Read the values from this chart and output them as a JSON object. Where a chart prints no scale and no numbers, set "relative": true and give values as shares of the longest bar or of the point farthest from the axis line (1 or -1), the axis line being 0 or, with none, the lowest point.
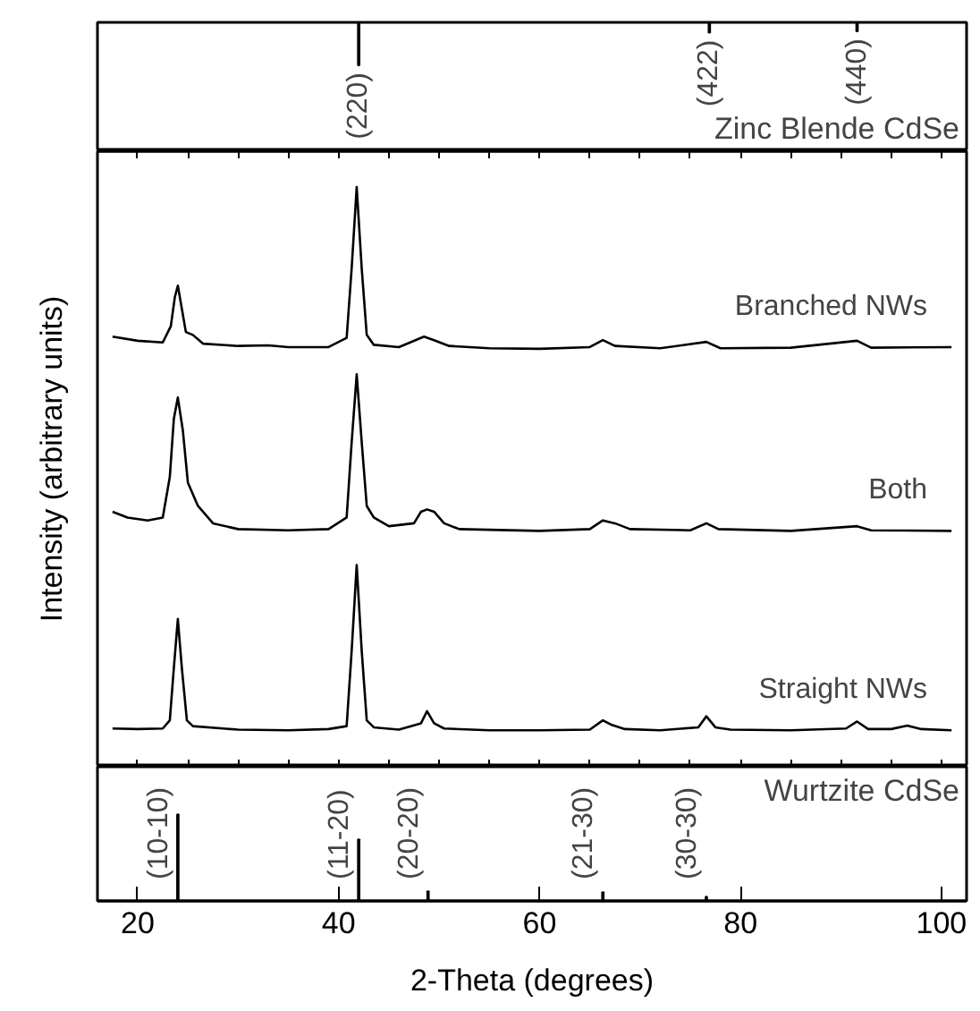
{
  "chart_data": [
    {
      "type": "bar",
      "title": "Zinc Blende CdSe",
      "relative": true,
      "xlim": [
        16,
        102.5
      ],
      "tick_labels": false,
      "x": [
        42.0,
        76.9,
        91.6
      ],
      "values": [
        -1,
        -0.24,
        -0.21
      ],
      "color": "#000000",
      "annotations": [
        {
          "text": "(220)",
          "x": 42.0,
          "y": -1
        },
        {
          "text": "(422)",
          "x": 76.9,
          "y": -0.24
        },
        {
          "text": "(440)",
          "x": 91.6,
          "y": -0.21
        }
      ]
    },
    {
      "type": "line",
      "relative": true,
      "ylabel": "Intensity (arbitrary units)",
      "xlim": [
        16,
        102.5
      ],
      "tick_labels": false,
      "xticks": [
        {
          "value": 20,
          "label": null
        },
        {
          "value": 25,
          "label": null
        },
        {
          "value": 30,
          "label": null
        },
        {
          "value": 35,
          "label": null
        },
        {
          "value": 40,
          "label": null
        },
        {
          "value": 45,
          "label": null
        },
        {
          "value": 50,
          "label": null
        },
        {
          "value": 55,
          "label": null
        },
        {
          "value": 60,
          "label": null
        },
        {
          "value": 65,
          "label": null
        },
        {
          "value": 70,
          "label": null
        },
        {
          "value": 75,
          "label": null
        },
        {
          "value": 80,
          "label": null
        },
        {
          "value": 85,
          "label": null
        },
        {
          "value": 90,
          "label": null
        },
        {
          "value": 95,
          "label": null
        },
        {
          "value": 100,
          "label": null
        }
      ],
      "series": [
        {
          "name": "Branched NWs",
          "color": "#000000",
          "x": [
            17.5,
            20,
            22.5,
            23.3,
            23.7,
            24.0,
            24.4,
            24.8,
            25.5,
            26.5,
            30,
            33,
            35,
            39,
            40.8,
            41.3,
            41.8,
            42.3,
            42.8,
            43.5,
            46,
            48.5,
            49.5,
            51,
            55,
            60,
            65,
            66.3,
            67.5,
            72,
            76.6,
            78,
            85,
            91.6,
            93,
            101
          ],
          "values": [
            0.742,
            0.735,
            0.732,
            0.76,
            0.81,
            0.83,
            0.79,
            0.75,
            0.745,
            0.73,
            0.726,
            0.727,
            0.724,
            0.724,
            0.74,
            0.86,
            1.0,
            0.86,
            0.745,
            0.728,
            0.724,
            0.742,
            0.736,
            0.726,
            0.722,
            0.721,
            0.724,
            0.736,
            0.726,
            0.722,
            0.733,
            0.722,
            0.723,
            0.735,
            0.723,
            0.724
          ]
        },
        {
          "name": "Both",
          "color": "#000000",
          "x": [
            17.5,
            19,
            21,
            22.5,
            23.2,
            23.6,
            24.0,
            24.5,
            25,
            26,
            27.5,
            30,
            35,
            39,
            40.8,
            41.3,
            41.8,
            42.3,
            42.8,
            43.5,
            45,
            47.5,
            48.2,
            48.8,
            49.5,
            50.5,
            52,
            60,
            65,
            66.3,
            67.5,
            69,
            75,
            76.6,
            77.8,
            85,
            91.6,
            93,
            101
          ],
          "values": [
            0.44,
            0.43,
            0.425,
            0.43,
            0.5,
            0.6,
            0.637,
            0.58,
            0.49,
            0.45,
            0.42,
            0.41,
            0.408,
            0.41,
            0.43,
            0.56,
            0.677,
            0.56,
            0.45,
            0.43,
            0.415,
            0.42,
            0.44,
            0.444,
            0.44,
            0.42,
            0.41,
            0.407,
            0.41,
            0.425,
            0.42,
            0.41,
            0.408,
            0.42,
            0.41,
            0.407,
            0.415,
            0.408,
            0.407
          ]
        },
        {
          "name": "Straight NWs",
          "color": "#000000",
          "x": [
            17.5,
            20,
            22.5,
            23.2,
            23.6,
            24.0,
            24.4,
            24.9,
            25.5,
            30,
            35,
            39,
            40.8,
            41.3,
            41.8,
            42.3,
            42.8,
            43.5,
            46,
            48.2,
            48.8,
            49.5,
            50.5,
            55,
            60,
            65,
            66.3,
            67.2,
            68.5,
            72,
            75.8,
            76.6,
            77.5,
            79,
            85,
            90.5,
            91.6,
            92.7,
            95,
            96.6,
            98,
            101
          ],
          "values": [
            0.066,
            0.065,
            0.066,
            0.08,
            0.17,
            0.255,
            0.17,
            0.08,
            0.07,
            0.064,
            0.063,
            0.065,
            0.07,
            0.2,
            0.348,
            0.2,
            0.08,
            0.068,
            0.064,
            0.075,
            0.096,
            0.075,
            0.066,
            0.063,
            0.063,
            0.064,
            0.08,
            0.072,
            0.065,
            0.063,
            0.068,
            0.087,
            0.068,
            0.064,
            0.063,
            0.066,
            0.078,
            0.065,
            0.065,
            0.071,
            0.065,
            0.063
          ]
        }
      ]
    },
    {
      "type": "bar",
      "title": "Wurtzite CdSe",
      "relative": true,
      "xlabel": "2-Theta (degrees)",
      "xlim": [
        16,
        102.5
      ],
      "tick_labels": "x",
      "xticks": [
        20,
        40,
        60,
        80,
        100
      ],
      "x": [
        24.0,
        42.0,
        48.9,
        66.3,
        76.6
      ],
      "values": [
        1,
        0.71,
        0.11,
        0.1,
        0.05
      ],
      "color": "#000000",
      "annotations": [
        {
          "text": "(10-10)",
          "x": 24.0,
          "y": 1
        },
        {
          "text": "(11-20)",
          "x": 42.0,
          "y": 0.71
        },
        {
          "text": "(20-20)",
          "x": 48.9,
          "y": 0.11
        },
        {
          "text": "(21-30)",
          "x": 66.3,
          "y": 0.1
        },
        {
          "text": "(30-30)",
          "x": 76.6,
          "y": 0.05
        }
      ]
    }
  ]
}
